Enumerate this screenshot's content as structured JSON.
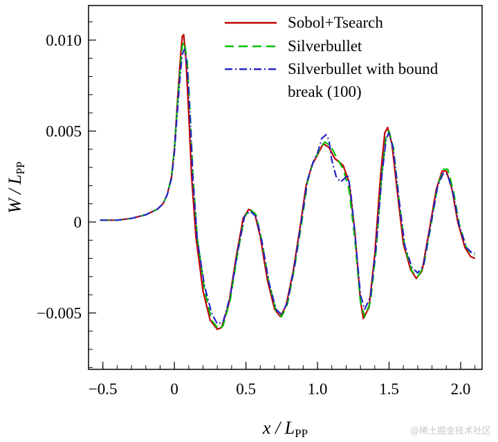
{
  "chart_data": {
    "type": "line",
    "xlabel": "x / L",
    "xlabel_sub": "PP",
    "ylabel": "W / L",
    "ylabel_sub": "PP",
    "xlim": [
      -0.6,
      2.15
    ],
    "ylim": [
      -0.0081,
      0.0119
    ],
    "xticks": [
      -0.5,
      0,
      0.5,
      1.0,
      1.5,
      2.0
    ],
    "xtick_labels": [
      "−0.5",
      "0",
      "0.5",
      "1.0",
      "1.5",
      "2.0"
    ],
    "yticks": [
      -0.005,
      0,
      0.005,
      0.01
    ],
    "ytick_labels": [
      "−0.005",
      "0",
      "0.005",
      "0.010"
    ],
    "grid": false,
    "legend_position": "top-right",
    "series": [
      {
        "name": "Sobol+Tsearch",
        "color": "#c00000",
        "dash": "solid",
        "points": [
          [
            -0.52,
            0.0001
          ],
          [
            -0.4,
            0.0001
          ],
          [
            -0.3,
            0.0002
          ],
          [
            -0.2,
            0.0004
          ],
          [
            -0.12,
            0.0007
          ],
          [
            -0.08,
            0.001
          ],
          [
            -0.05,
            0.0015
          ],
          [
            -0.02,
            0.0025
          ],
          [
            0.0,
            0.004
          ],
          [
            0.02,
            0.0065
          ],
          [
            0.04,
            0.0088
          ],
          [
            0.055,
            0.0102
          ],
          [
            0.065,
            0.0103
          ],
          [
            0.08,
            0.009
          ],
          [
            0.1,
            0.006
          ],
          [
            0.12,
            0.0025
          ],
          [
            0.15,
            -0.0008
          ],
          [
            0.2,
            -0.0038
          ],
          [
            0.25,
            -0.0054
          ],
          [
            0.3,
            -0.0059
          ],
          [
            0.33,
            -0.0058
          ],
          [
            0.38,
            -0.0045
          ],
          [
            0.43,
            -0.002
          ],
          [
            0.48,
            0.0002
          ],
          [
            0.52,
            0.0007
          ],
          [
            0.56,
            0.0005
          ],
          [
            0.6,
            -0.0008
          ],
          [
            0.65,
            -0.0032
          ],
          [
            0.7,
            -0.0048
          ],
          [
            0.74,
            -0.0052
          ],
          [
            0.78,
            -0.0046
          ],
          [
            0.83,
            -0.0027
          ],
          [
            0.88,
            -0.0002
          ],
          [
            0.92,
            0.002
          ],
          [
            0.96,
            0.0031
          ],
          [
            1.0,
            0.0037
          ],
          [
            1.04,
            0.0043
          ],
          [
            1.08,
            0.0041
          ],
          [
            1.12,
            0.0035
          ],
          [
            1.18,
            0.0031
          ],
          [
            1.22,
            0.0022
          ],
          [
            1.26,
            -0.0005
          ],
          [
            1.3,
            -0.0043
          ],
          [
            1.32,
            -0.0053
          ],
          [
            1.36,
            -0.0047
          ],
          [
            1.4,
            -0.0018
          ],
          [
            1.44,
            0.0025
          ],
          [
            1.47,
            0.0049
          ],
          [
            1.49,
            0.0052
          ],
          [
            1.52,
            0.0043
          ],
          [
            1.56,
            0.0015
          ],
          [
            1.6,
            -0.0012
          ],
          [
            1.65,
            -0.0026
          ],
          [
            1.69,
            -0.0031
          ],
          [
            1.73,
            -0.0027
          ],
          [
            1.78,
            -0.0005
          ],
          [
            1.83,
            0.0018
          ],
          [
            1.87,
            0.0028
          ],
          [
            1.9,
            0.0028
          ],
          [
            1.94,
            0.0018
          ],
          [
            1.98,
            0.0
          ],
          [
            2.03,
            -0.0014
          ],
          [
            2.07,
            -0.0019
          ],
          [
            2.1,
            -0.002
          ]
        ]
      },
      {
        "name": "Silverbullet",
        "color": "#00c000",
        "dash": "long-dash",
        "points": [
          [
            -0.52,
            0.0001
          ],
          [
            -0.4,
            0.0001
          ],
          [
            -0.3,
            0.0002
          ],
          [
            -0.2,
            0.0004
          ],
          [
            -0.12,
            0.0007
          ],
          [
            -0.08,
            0.001
          ],
          [
            -0.05,
            0.0015
          ],
          [
            -0.02,
            0.0025
          ],
          [
            0.0,
            0.004
          ],
          [
            0.02,
            0.0063
          ],
          [
            0.04,
            0.0084
          ],
          [
            0.055,
            0.0097
          ],
          [
            0.07,
            0.0099
          ],
          [
            0.09,
            0.0088
          ],
          [
            0.11,
            0.006
          ],
          [
            0.13,
            0.0025
          ],
          [
            0.16,
            -0.0009
          ],
          [
            0.21,
            -0.0037
          ],
          [
            0.26,
            -0.0054
          ],
          [
            0.31,
            -0.0059
          ],
          [
            0.34,
            -0.0057
          ],
          [
            0.39,
            -0.0043
          ],
          [
            0.44,
            -0.0018
          ],
          [
            0.49,
            0.0003
          ],
          [
            0.53,
            0.0007
          ],
          [
            0.57,
            0.0004
          ],
          [
            0.61,
            -0.001
          ],
          [
            0.66,
            -0.0033
          ],
          [
            0.71,
            -0.0049
          ],
          [
            0.75,
            -0.0052
          ],
          [
            0.79,
            -0.0045
          ],
          [
            0.84,
            -0.0025
          ],
          [
            0.89,
            0.0
          ],
          [
            0.93,
            0.0022
          ],
          [
            0.97,
            0.0033
          ],
          [
            1.01,
            0.0039
          ],
          [
            1.05,
            0.0044
          ],
          [
            1.09,
            0.0042
          ],
          [
            1.13,
            0.0036
          ],
          [
            1.18,
            0.0029
          ],
          [
            1.22,
            0.0018
          ],
          [
            1.26,
            -0.0009
          ],
          [
            1.3,
            -0.0044
          ],
          [
            1.33,
            -0.0052
          ],
          [
            1.37,
            -0.0044
          ],
          [
            1.41,
            -0.0015
          ],
          [
            1.45,
            0.0027
          ],
          [
            1.48,
            0.0048
          ],
          [
            1.5,
            0.005
          ],
          [
            1.53,
            0.0041
          ],
          [
            1.57,
            0.0012
          ],
          [
            1.61,
            -0.0014
          ],
          [
            1.66,
            -0.0027
          ],
          [
            1.7,
            -0.003
          ],
          [
            1.74,
            -0.0025
          ],
          [
            1.79,
            -0.0003
          ],
          [
            1.84,
            0.002
          ],
          [
            1.88,
            0.0029
          ],
          [
            1.91,
            0.0029
          ],
          [
            1.95,
            0.0017
          ],
          [
            1.99,
            -0.0001
          ],
          [
            2.04,
            -0.0014
          ],
          [
            2.08,
            -0.0018
          ],
          [
            2.1,
            -0.0018
          ]
        ]
      },
      {
        "name": "Silverbullet with bound break (100)",
        "color": "#2424c8",
        "dash": "dash-dot",
        "points": [
          [
            -0.52,
            0.0001
          ],
          [
            -0.4,
            0.0001
          ],
          [
            -0.3,
            0.0002
          ],
          [
            -0.2,
            0.0004
          ],
          [
            -0.12,
            0.0007
          ],
          [
            -0.08,
            0.001
          ],
          [
            -0.05,
            0.0015
          ],
          [
            -0.02,
            0.0024
          ],
          [
            0.0,
            0.0038
          ],
          [
            0.02,
            0.006
          ],
          [
            0.04,
            0.008
          ],
          [
            0.055,
            0.0092
          ],
          [
            0.07,
            0.0095
          ],
          [
            0.09,
            0.0085
          ],
          [
            0.11,
            0.0058
          ],
          [
            0.13,
            0.0023
          ],
          [
            0.16,
            -0.001
          ],
          [
            0.21,
            -0.0035
          ],
          [
            0.26,
            -0.005
          ],
          [
            0.3,
            -0.0056
          ],
          [
            0.34,
            -0.0055
          ],
          [
            0.39,
            -0.0041
          ],
          [
            0.44,
            -0.0017
          ],
          [
            0.49,
            0.0003
          ],
          [
            0.53,
            0.0006
          ],
          [
            0.57,
            0.0003
          ],
          [
            0.61,
            -0.001
          ],
          [
            0.66,
            -0.0033
          ],
          [
            0.71,
            -0.0048
          ],
          [
            0.75,
            -0.0051
          ],
          [
            0.79,
            -0.0044
          ],
          [
            0.84,
            -0.0024
          ],
          [
            0.89,
            0.0002
          ],
          [
            0.93,
            0.0023
          ],
          [
            0.97,
            0.0033
          ],
          [
            1.0,
            0.0038
          ],
          [
            1.03,
            0.0046
          ],
          [
            1.06,
            0.0048
          ],
          [
            1.08,
            0.0045
          ],
          [
            1.1,
            0.0034
          ],
          [
            1.13,
            0.0025
          ],
          [
            1.16,
            0.0022
          ],
          [
            1.19,
            0.0024
          ],
          [
            1.21,
            0.0026
          ],
          [
            1.23,
            0.0018
          ],
          [
            1.26,
            -0.0005
          ],
          [
            1.3,
            -0.004
          ],
          [
            1.33,
            -0.0048
          ],
          [
            1.37,
            -0.0041
          ],
          [
            1.41,
            -0.0013
          ],
          [
            1.45,
            0.0026
          ],
          [
            1.48,
            0.0046
          ],
          [
            1.5,
            0.0049
          ],
          [
            1.53,
            0.004
          ],
          [
            1.57,
            0.0012
          ],
          [
            1.61,
            -0.0013
          ],
          [
            1.66,
            -0.0025
          ],
          [
            1.7,
            -0.0028
          ],
          [
            1.74,
            -0.0024
          ],
          [
            1.79,
            -0.0002
          ],
          [
            1.84,
            0.002
          ],
          [
            1.88,
            0.0027
          ],
          [
            1.91,
            0.0026
          ],
          [
            1.95,
            0.0015
          ],
          [
            1.99,
            -0.0002
          ],
          [
            2.04,
            -0.0014
          ],
          [
            2.08,
            -0.0017
          ],
          [
            2.1,
            -0.0017
          ]
        ]
      }
    ],
    "legend_lines": [
      [
        "Sobol+Tsearch"
      ],
      [
        "Silverbullet"
      ],
      [
        "Silverbullet with bound",
        "break (100)"
      ]
    ]
  },
  "watermark": "@稀土掘金技术社区"
}
